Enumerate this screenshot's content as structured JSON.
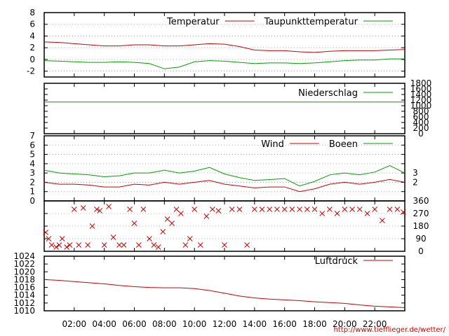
{
  "credit": "http://www.tiefflieger.de/wetter/",
  "colors": {
    "red": "#cc0000",
    "green": "#00a000",
    "grid": "#999999"
  },
  "x_axis": {
    "range": [
      0,
      24
    ],
    "tick_values": [
      2,
      4,
      6,
      8,
      10,
      12,
      14,
      16,
      18,
      20,
      22
    ],
    "tick_labels": [
      "02:00",
      "04:00",
      "06:00",
      "08:00",
      "10:00",
      "12:00",
      "14:00",
      "16:00",
      "18:00",
      "20:00",
      "22:00"
    ]
  },
  "chart_data": [
    {
      "type": "line",
      "ylim": [
        -3,
        8
      ],
      "y_ticks": [
        -2,
        0,
        2,
        4,
        6,
        8
      ],
      "y_tick_labels": [
        "-2",
        "0",
        "2",
        "4",
        "6",
        "8"
      ],
      "grid": true,
      "legend": "top-right",
      "series": [
        {
          "name": "Temperatur",
          "color": "red",
          "x": [
            0,
            1,
            2,
            3,
            4,
            5,
            6,
            7,
            8,
            9,
            10,
            11,
            12,
            13,
            14,
            15,
            16,
            17,
            18,
            19,
            20,
            21,
            22,
            23,
            24
          ],
          "y": [
            3.0,
            2.9,
            2.7,
            2.5,
            2.3,
            2.3,
            2.5,
            2.5,
            2.3,
            2.3,
            2.5,
            2.7,
            2.6,
            2.2,
            1.6,
            1.5,
            1.5,
            1.3,
            1.2,
            1.4,
            1.5,
            1.5,
            1.5,
            1.6,
            1.7
          ]
        },
        {
          "name": "Taupunkttemperatur",
          "color": "green",
          "x": [
            0,
            1,
            2,
            3,
            4,
            5,
            6,
            7,
            8,
            9,
            10,
            11,
            12,
            13,
            14,
            15,
            16,
            17,
            18,
            19,
            20,
            21,
            22,
            23,
            24
          ],
          "y": [
            -0.2,
            -0.3,
            -0.4,
            -0.5,
            -0.5,
            -0.4,
            -0.5,
            -0.7,
            -1.6,
            -1.3,
            -0.4,
            -0.2,
            -0.3,
            -0.5,
            -0.7,
            -0.6,
            -0.6,
            -0.7,
            -0.6,
            -0.4,
            -0.2,
            -0.1,
            -0.1,
            0.1,
            0.1
          ]
        }
      ]
    },
    {
      "type": "line",
      "ylim": [
        0,
        1800
      ],
      "y_ticks": [
        0,
        200,
        400,
        600,
        800,
        1000,
        1200,
        1400,
        1600,
        1800
      ],
      "y_tick_labels": [
        "0",
        "200",
        "400",
        "600",
        "800",
        "1000",
        "1200",
        "1400",
        "1600",
        "1800"
      ],
      "legend": "top-right",
      "series": [
        {
          "name": "Niederschlag",
          "color": "green",
          "x": [
            0,
            24
          ],
          "y": [
            1130,
            1130
          ]
        }
      ]
    },
    {
      "type": "line",
      "ylim": [
        0,
        7
      ],
      "y_ticks": [
        0,
        1,
        2,
        3,
        4,
        5,
        6,
        7
      ],
      "y_tick_labels": [
        "0",
        "1",
        "2",
        "3",
        "4",
        "5",
        "6",
        "7"
      ],
      "y2_ticks": [
        2,
        3
      ],
      "y2_tick_labels": [
        "2",
        "3"
      ],
      "grid": true,
      "legend": "top-right",
      "series": [
        {
          "name": "Wind",
          "color": "red",
          "x": [
            0,
            1,
            2,
            3,
            4,
            5,
            6,
            7,
            8,
            9,
            10,
            11,
            12,
            13,
            14,
            15,
            16,
            17,
            18,
            19,
            20,
            21,
            22,
            23,
            24
          ],
          "y": [
            2.0,
            1.8,
            1.8,
            1.7,
            1.5,
            1.5,
            1.8,
            1.7,
            2.0,
            1.8,
            2.0,
            2.2,
            1.8,
            1.6,
            1.4,
            1.5,
            1.5,
            1.0,
            1.3,
            1.8,
            2.0,
            1.8,
            2.0,
            2.3,
            2.0
          ]
        },
        {
          "name": "Boeen",
          "color": "green",
          "x": [
            0,
            1,
            2,
            3,
            4,
            5,
            6,
            7,
            8,
            9,
            10,
            11,
            12,
            13,
            14,
            15,
            16,
            17,
            18,
            19,
            20,
            21,
            22,
            23,
            24
          ],
          "y": [
            3.3,
            3.0,
            2.9,
            2.8,
            2.6,
            2.7,
            3.0,
            3.0,
            3.3,
            3.0,
            3.2,
            3.6,
            2.9,
            2.5,
            2.2,
            2.3,
            2.4,
            1.6,
            2.1,
            2.8,
            3.0,
            2.8,
            3.1,
            3.8,
            3.0
          ]
        }
      ]
    },
    {
      "type": "scatter",
      "ylim": [
        0,
        360
      ],
      "y_ticks": [
        0,
        90,
        180,
        270,
        360
      ],
      "y_tick_labels": [
        "0",
        "90",
        "180",
        "270",
        "360"
      ],
      "grid": true,
      "series": [
        {
          "name": "",
          "color": "red",
          "x": [
            0.1,
            0.3,
            0.5,
            0.8,
            1.0,
            1.2,
            1.5,
            1.7,
            2.0,
            2.3,
            2.6,
            2.9,
            3.2,
            3.5,
            3.7,
            4.0,
            4.3,
            4.6,
            5.0,
            5.3,
            5.7,
            6.0,
            6.3,
            6.6,
            7.0,
            7.3,
            7.6,
            7.9,
            8.2,
            8.5,
            8.8,
            9.1,
            9.4,
            9.7,
            10.0,
            10.4,
            10.8,
            11.2,
            11.6,
            12.0,
            12.5,
            13.0,
            13.5,
            14.0,
            14.5,
            15.0,
            15.5,
            16.0,
            16.5,
            17.0,
            17.5,
            18.0,
            18.5,
            19.0,
            19.5,
            20.0,
            20.5,
            21.0,
            21.5,
            22.0,
            22.5,
            23.0,
            23.5,
            23.9
          ],
          "y": [
            135,
            90,
            45,
            30,
            45,
            90,
            30,
            45,
            300,
            45,
            310,
            45,
            180,
            300,
            290,
            45,
            320,
            100,
            45,
            45,
            300,
            200,
            45,
            300,
            90,
            45,
            30,
            140,
            230,
            200,
            300,
            270,
            45,
            90,
            300,
            45,
            250,
            300,
            290,
            45,
            300,
            300,
            45,
            300,
            300,
            300,
            300,
            300,
            300,
            300,
            300,
            300,
            270,
            300,
            270,
            300,
            300,
            300,
            270,
            300,
            220,
            300,
            300,
            280
          ]
        }
      ]
    },
    {
      "type": "line",
      "ylim": [
        1010,
        1024
      ],
      "y_ticks": [
        1010,
        1012,
        1014,
        1016,
        1018,
        1020,
        1022,
        1024
      ],
      "y_tick_labels": [
        "1010",
        "1012",
        "1014",
        "1016",
        "1018",
        "1020",
        "1022",
        "1024"
      ],
      "legend": "top-right",
      "series": [
        {
          "name": "Luftdruck",
          "color": "red",
          "x": [
            0,
            1,
            2,
            3,
            4,
            5,
            6,
            7,
            8,
            9,
            10,
            11,
            12,
            13,
            14,
            15,
            16,
            17,
            18,
            19,
            20,
            21,
            22,
            23,
            24
          ],
          "y": [
            1018.0,
            1017.8,
            1017.5,
            1017.2,
            1016.9,
            1016.5,
            1016.2,
            1016.0,
            1015.9,
            1015.9,
            1015.7,
            1015.2,
            1014.5,
            1013.8,
            1013.3,
            1013.0,
            1012.8,
            1012.6,
            1012.3,
            1012.1,
            1011.9,
            1011.5,
            1011.2,
            1011.0,
            1010.8
          ]
        }
      ]
    }
  ]
}
